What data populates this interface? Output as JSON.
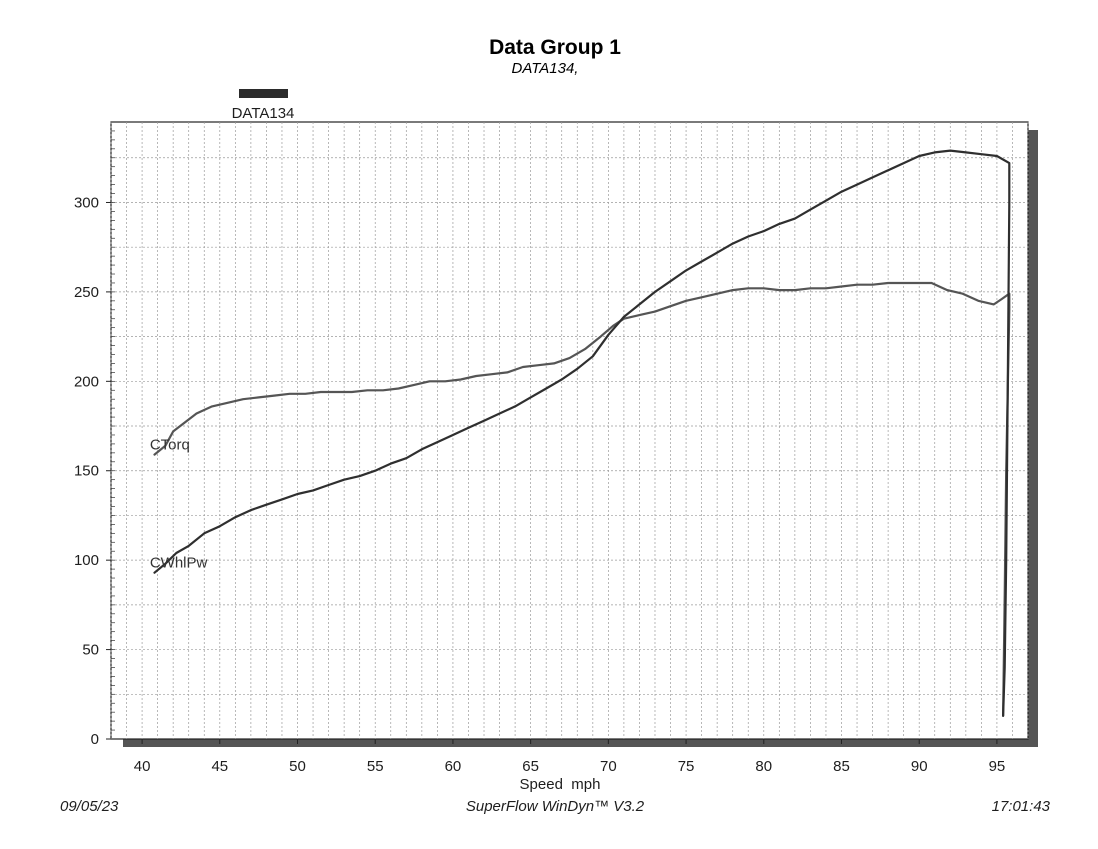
{
  "header": {
    "title": "Data Group 1",
    "subtitle": "DATA134,"
  },
  "legend": {
    "label": "DATA134",
    "color": "#2b2b2b"
  },
  "footer": {
    "date": "09/05/23",
    "software": "SuperFlow WinDyn™ V3.2",
    "time": "17:01:43"
  },
  "chart_data": {
    "type": "line",
    "title": "Data Group 1",
    "subtitle": "DATA134,",
    "xlabel": "Speed  mph",
    "ylabel": "",
    "xlim": [
      38,
      97
    ],
    "ylim": [
      0,
      345
    ],
    "x_ticks": [
      40,
      45,
      50,
      55,
      60,
      65,
      70,
      75,
      80,
      85,
      90,
      95
    ],
    "y_ticks": [
      0,
      50,
      100,
      150,
      200,
      250,
      300
    ],
    "grid": true,
    "series": [
      {
        "name": "CTorq",
        "color": "#555555",
        "points": [
          [
            40.8,
            159
          ],
          [
            41.5,
            164
          ],
          [
            42,
            172
          ],
          [
            42.6,
            176
          ],
          [
            43.5,
            182
          ],
          [
            44.5,
            186
          ],
          [
            45.5,
            188
          ],
          [
            46.5,
            190
          ],
          [
            47.5,
            191
          ],
          [
            48.5,
            192
          ],
          [
            49.5,
            193
          ],
          [
            50.5,
            193
          ],
          [
            51.5,
            194
          ],
          [
            52.5,
            194
          ],
          [
            53.5,
            194
          ],
          [
            54.5,
            195
          ],
          [
            55.5,
            195
          ],
          [
            56.5,
            196
          ],
          [
            57.5,
            198
          ],
          [
            58.5,
            200
          ],
          [
            59.5,
            200
          ],
          [
            60.5,
            201
          ],
          [
            61.5,
            203
          ],
          [
            62.5,
            204
          ],
          [
            63.5,
            205
          ],
          [
            64.5,
            208
          ],
          [
            65.5,
            209
          ],
          [
            66.5,
            210
          ],
          [
            67.5,
            213
          ],
          [
            68.5,
            218
          ],
          [
            69.5,
            225
          ],
          [
            70.3,
            231
          ],
          [
            71,
            235
          ],
          [
            72,
            237
          ],
          [
            73,
            239
          ],
          [
            74,
            242
          ],
          [
            75,
            245
          ],
          [
            76,
            247
          ],
          [
            77,
            249
          ],
          [
            78,
            251
          ],
          [
            79,
            252
          ],
          [
            80,
            252
          ],
          [
            81,
            251
          ],
          [
            82,
            251
          ],
          [
            83,
            252
          ],
          [
            84,
            252
          ],
          [
            85,
            253
          ],
          [
            86,
            254
          ],
          [
            87,
            254
          ],
          [
            88,
            255
          ],
          [
            89,
            255
          ],
          [
            90,
            255
          ],
          [
            90.8,
            255
          ],
          [
            91.8,
            251
          ],
          [
            92.8,
            249
          ],
          [
            93.8,
            245
          ],
          [
            94.8,
            243
          ],
          [
            95.3,
            246
          ],
          [
            95.8,
            249
          ],
          [
            95.8,
            240
          ],
          [
            95.6,
            150
          ],
          [
            95.5,
            80
          ],
          [
            95.4,
            13
          ]
        ]
      },
      {
        "name": "CWhlPw",
        "color": "#2f2f2f",
        "points": [
          [
            40.8,
            93
          ],
          [
            41.5,
            98
          ],
          [
            42.2,
            104
          ],
          [
            43,
            108
          ],
          [
            44,
            115
          ],
          [
            45,
            119
          ],
          [
            46,
            124
          ],
          [
            47,
            128
          ],
          [
            48,
            131
          ],
          [
            49,
            134
          ],
          [
            50,
            137
          ],
          [
            51,
            139
          ],
          [
            52,
            142
          ],
          [
            53,
            145
          ],
          [
            54,
            147
          ],
          [
            55,
            150
          ],
          [
            56,
            154
          ],
          [
            57,
            157
          ],
          [
            58,
            162
          ],
          [
            59,
            166
          ],
          [
            60,
            170
          ],
          [
            61,
            174
          ],
          [
            62,
            178
          ],
          [
            63,
            182
          ],
          [
            64,
            186
          ],
          [
            65,
            191
          ],
          [
            66,
            196
          ],
          [
            67,
            201
          ],
          [
            68,
            207
          ],
          [
            69,
            214
          ],
          [
            70,
            226
          ],
          [
            71,
            236
          ],
          [
            72,
            243
          ],
          [
            73,
            250
          ],
          [
            74,
            256
          ],
          [
            75,
            262
          ],
          [
            76,
            267
          ],
          [
            77,
            272
          ],
          [
            78,
            277
          ],
          [
            79,
            281
          ],
          [
            80,
            284
          ],
          [
            81,
            288
          ],
          [
            82,
            291
          ],
          [
            83,
            296
          ],
          [
            84,
            301
          ],
          [
            85,
            306
          ],
          [
            86,
            310
          ],
          [
            87,
            314
          ],
          [
            88,
            318
          ],
          [
            89,
            322
          ],
          [
            90,
            326
          ],
          [
            91,
            328
          ],
          [
            92,
            329
          ],
          [
            93,
            328
          ],
          [
            94,
            327
          ],
          [
            95,
            326
          ],
          [
            95.8,
            322
          ],
          [
            95.8,
            300
          ],
          [
            95.7,
            200
          ],
          [
            95.6,
            100
          ],
          [
            95.5,
            40
          ],
          [
            95.4,
            13
          ]
        ]
      }
    ],
    "annotations": [
      {
        "text": "CTorq",
        "x": 40.5,
        "y": 162
      },
      {
        "text": "CWhlPw",
        "x": 40.5,
        "y": 96
      }
    ]
  }
}
